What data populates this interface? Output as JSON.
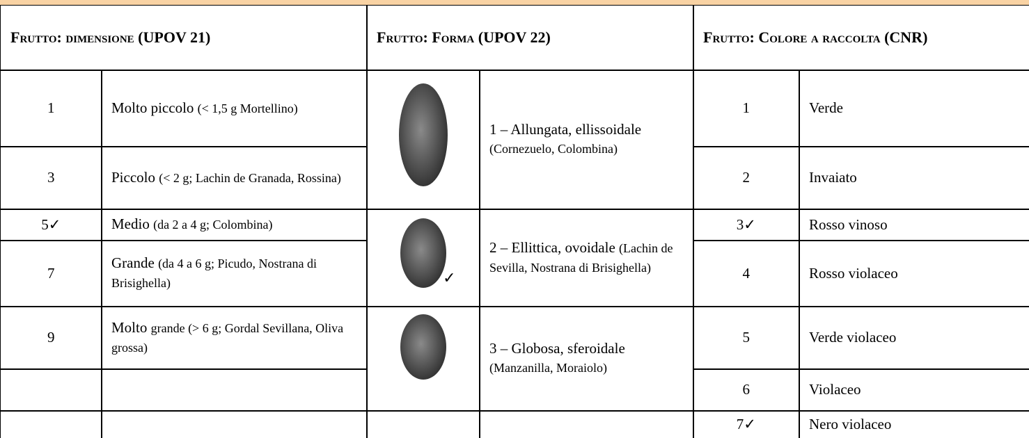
{
  "header": {
    "dimensione": "Frutto: dimensione (UPOV 21)",
    "forma": "Frutto: Forma (UPOV 22)",
    "colore": "Frutto: Colore a raccolta (CNR)"
  },
  "dimensione": [
    {
      "code": "1",
      "label": "Molto piccolo",
      "note": "(< 1,5 g Mortellino)"
    },
    {
      "code": "3",
      "label": "Piccolo",
      "note": "(< 2 g; Lachin de Granada, Rossina)"
    },
    {
      "code": "5✓",
      "label": "Medio",
      "note": "(da 2 a 4 g; Colombina)"
    },
    {
      "code": "7",
      "label": "Grande",
      "note": "(da 4 a 6 g; Picudo, Nostrana di Brisighella)"
    },
    {
      "code": "9",
      "label": "Molto",
      "note": "grande (> 6 g; Gordal Sevillana, Oliva grossa)"
    }
  ],
  "forma": [
    {
      "label": "1 – Allungata, ellissoidale",
      "note": "(Cornezuelo, Colombina)"
    },
    {
      "label": "2 – Ellittica, ovoidale",
      "note": "(Lachin de Sevilla, Nostrana di Brisighella)",
      "mark": "✓"
    },
    {
      "label": "3 – Globosa, sferoidale",
      "note": "(Manzanilla, Moraiolo)"
    }
  ],
  "colore": [
    {
      "code": "1",
      "label": "Verde"
    },
    {
      "code": "2",
      "label": "Invaiato"
    },
    {
      "code": "3✓",
      "label": "Rosso vinoso"
    },
    {
      "code": "4",
      "label": "Rosso violaceo"
    },
    {
      "code": "5",
      "label": "Verde violaceo"
    },
    {
      "code": "6",
      "label": "Violaceo"
    },
    {
      "code": "7✓",
      "label": "Nero violaceo"
    }
  ]
}
